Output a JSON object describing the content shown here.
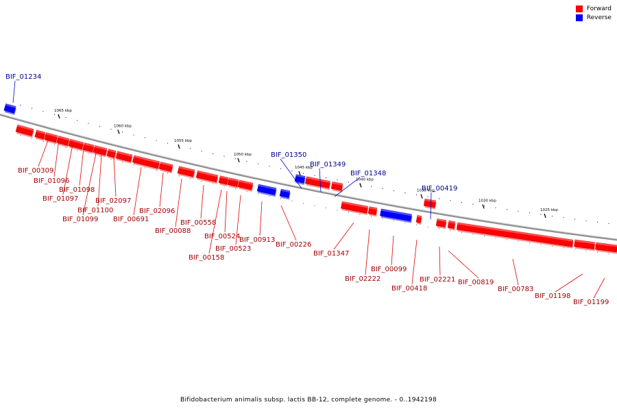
{
  "legend": {
    "forward": {
      "label": "Forward",
      "color": "#ff0000"
    },
    "reverse": {
      "label": "Reverse",
      "color": "#0000ff"
    }
  },
  "caption": "Bifidobacterium animalis subsp. lactis BB-12, complete genome. - 0..1942198",
  "ticks": [
    "1065 kbp",
    "1060 kbp",
    "1055 kbp",
    "1050 kbp",
    "1045 kbp",
    "1040 kbp",
    "1035 kbp",
    "1030 kbp",
    "1025 kbp"
  ],
  "genes": [
    {
      "id": "BIF_01234",
      "strand": "reverse"
    },
    {
      "id": "BIF_00309",
      "strand": "forward"
    },
    {
      "id": "BIF_01096",
      "strand": "forward"
    },
    {
      "id": "BIF_01097",
      "strand": "forward"
    },
    {
      "id": "BIF_01098",
      "strand": "forward"
    },
    {
      "id": "BIF_01099",
      "strand": "forward"
    },
    {
      "id": "BIF_01100",
      "strand": "forward"
    },
    {
      "id": "BIF_02097",
      "strand": "forward"
    },
    {
      "id": "BIF_00691",
      "strand": "forward"
    },
    {
      "id": "BIF_02096",
      "strand": "forward"
    },
    {
      "id": "BIF_00088",
      "strand": "forward"
    },
    {
      "id": "BIF_00558",
      "strand": "forward"
    },
    {
      "id": "BIF_00158",
      "strand": "forward"
    },
    {
      "id": "BIF_00524",
      "strand": "forward"
    },
    {
      "id": "BIF_00523",
      "strand": "forward"
    },
    {
      "id": "BIF_00913",
      "strand": "forward"
    },
    {
      "id": "BIF_00226",
      "strand": "forward"
    },
    {
      "id": "BIF_01350",
      "strand": "reverse"
    },
    {
      "id": "BIF_01349",
      "strand": "reverse"
    },
    {
      "id": "BIF_01348",
      "strand": "reverse"
    },
    {
      "id": "BIF_01347",
      "strand": "forward"
    },
    {
      "id": "BIF_02222",
      "strand": "forward"
    },
    {
      "id": "BIF_00099",
      "strand": "forward"
    },
    {
      "id": "BIF_00418",
      "strand": "forward"
    },
    {
      "id": "BIF_00419",
      "strand": "reverse"
    },
    {
      "id": "BIF_02221",
      "strand": "forward"
    },
    {
      "id": "BIF_00819",
      "strand": "forward"
    },
    {
      "id": "BIF_00783",
      "strand": "forward"
    },
    {
      "id": "BIF_01198",
      "strand": "forward"
    },
    {
      "id": "BIF_01199",
      "strand": "forward"
    }
  ]
}
